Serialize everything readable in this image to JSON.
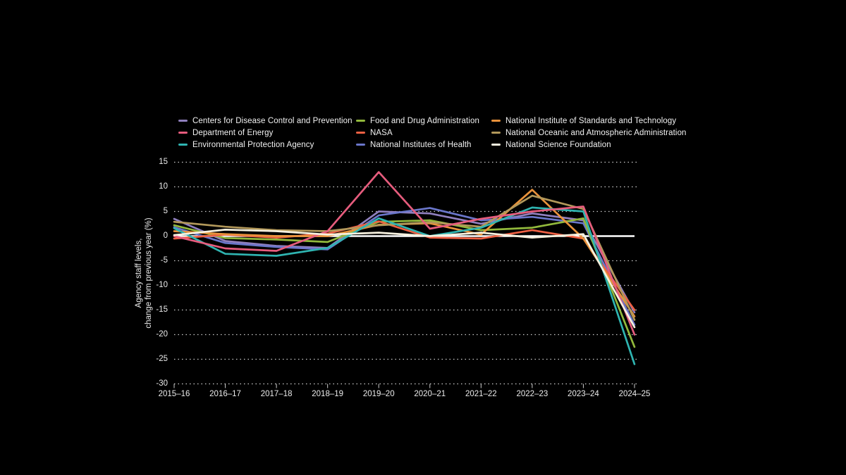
{
  "colors": {
    "background": "#000000",
    "text": "#ececec",
    "grid": "#ffffff",
    "zero_line": "#ffffff"
  },
  "axis": {
    "ylabel_line1": "Agency staff levels,",
    "ylabel_line2": "change from previous year (%)"
  },
  "chart_data": {
    "type": "line",
    "x": [
      "2015–16",
      "2016–17",
      "2017–18",
      "2018–19",
      "2019–20",
      "2020–21",
      "2021–22",
      "2022–23",
      "2023–24",
      "2024–25"
    ],
    "ylim": [
      -30,
      15
    ],
    "yticks": [
      15,
      10,
      5,
      0,
      -5,
      -10,
      -15,
      -20,
      -25,
      -30
    ],
    "grid": "dotted horizontal gridlines, solid white zero line",
    "legend_position": "top",
    "ylabel": "Agency staff levels, change from previous year (%)",
    "series": [
      {
        "name": "Centers for Disease Control and Prevention",
        "color": "#8f7fbd",
        "values": [
          3.5,
          -1.0,
          -2.0,
          -2.4,
          5.0,
          4.6,
          2.5,
          4.6,
          3.2,
          -15.5
        ]
      },
      {
        "name": "Department of Energy",
        "color": "#e65c7d",
        "values": [
          0.0,
          -2.5,
          -3.0,
          1.0,
          13.0,
          1.5,
          3.5,
          5.0,
          6.0,
          -20.0
        ]
      },
      {
        "name": "Environmental Protection Agency",
        "color": "#2fb4b1",
        "values": [
          1.6,
          -3.6,
          -4.0,
          -2.4,
          3.6,
          0.0,
          1.7,
          5.8,
          5.0,
          -26.0
        ]
      },
      {
        "name": "Food and Drug Administration",
        "color": "#92b93c",
        "values": [
          2.2,
          -0.4,
          -0.7,
          -1.2,
          2.9,
          3.2,
          1.2,
          1.7,
          3.6,
          -22.5
        ]
      },
      {
        "name": "NASA",
        "color": "#ee6043",
        "values": [
          -0.5,
          0.3,
          -0.3,
          0.5,
          3.0,
          -0.3,
          -0.5,
          1.2,
          -0.5,
          -15.0
        ]
      },
      {
        "name": "National Institutes of Health",
        "color": "#6a76ca",
        "values": [
          1.8,
          -1.4,
          -2.2,
          -2.7,
          4.2,
          5.7,
          3.2,
          3.9,
          2.6,
          -18.0
        ]
      },
      {
        "name": "National Institute of Standards and Technology",
        "color": "#e9923b",
        "values": [
          1.0,
          0.4,
          0.0,
          0.0,
          2.3,
          2.6,
          0.3,
          9.4,
          -0.5,
          -16.3
        ]
      },
      {
        "name": "National Oceanic and Atmospheric Administration",
        "color": "#b2985a",
        "values": [
          2.9,
          1.9,
          1.2,
          1.0,
          2.2,
          2.8,
          1.9,
          8.2,
          5.5,
          -17.0
        ]
      },
      {
        "name": "National Science Foundation",
        "color": "#f7f1df",
        "values": [
          0.2,
          1.3,
          1.0,
          0.3,
          0.7,
          0.0,
          0.7,
          -0.3,
          0.4,
          -18.5
        ]
      }
    ]
  }
}
